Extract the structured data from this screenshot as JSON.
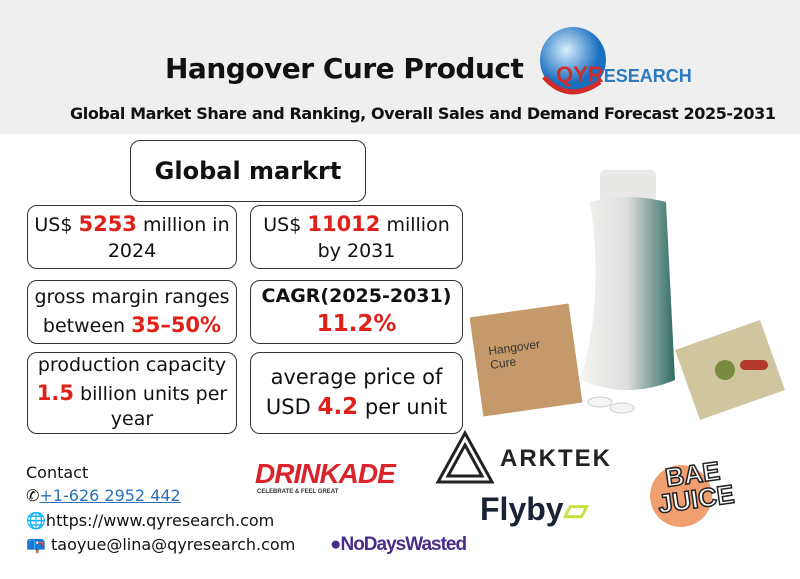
{
  "header": {
    "title": "Hangover Cure Product",
    "subtitle": "Global Market Share and Ranking, Overall Sales and Demand Forecast 2025-2031",
    "logo": {
      "q": "QYR",
      "rest": "ESEARCH"
    }
  },
  "global_box": {
    "label": "Global markrt"
  },
  "stats": {
    "market_2024": {
      "pre": "US$ ",
      "value": "5253",
      "post": " million in 2024"
    },
    "market_2031": {
      "pre": "US$ ",
      "value": "11012",
      "post": " million by 2031"
    },
    "gross_margin": {
      "pre": "gross margin ranges between ",
      "value": "35–50%"
    },
    "cagr": {
      "label": "CAGR(2025-2031)",
      "value": "11.2%"
    },
    "capacity": {
      "pre": "production capacity ",
      "value": "1.5",
      "post": " billion units per year"
    },
    "price": {
      "pre": "average price of USD ",
      "value": "4.2",
      "post": " per unit"
    }
  },
  "product": {
    "sachet_text": "Hangover Cure"
  },
  "contact": {
    "label": "Contact",
    "phone": "+1-626 2952 442",
    "website": "https://www.qyresearch.com",
    "email": "taoyue@lina@qyresearch.com"
  },
  "brands": {
    "drinkade": "DRINKADE",
    "drinkade_tag": "CELEBRATE & FEEL GREAT",
    "arktek": "ARKTEK",
    "flyby": "Flyby",
    "nodays": "NoDaysWasted",
    "bae": "BAE",
    "juice": "JUICE"
  },
  "colors": {
    "accent_red": "#e0211a",
    "header_bg": "#efefef",
    "link": "#2a6fb8"
  }
}
